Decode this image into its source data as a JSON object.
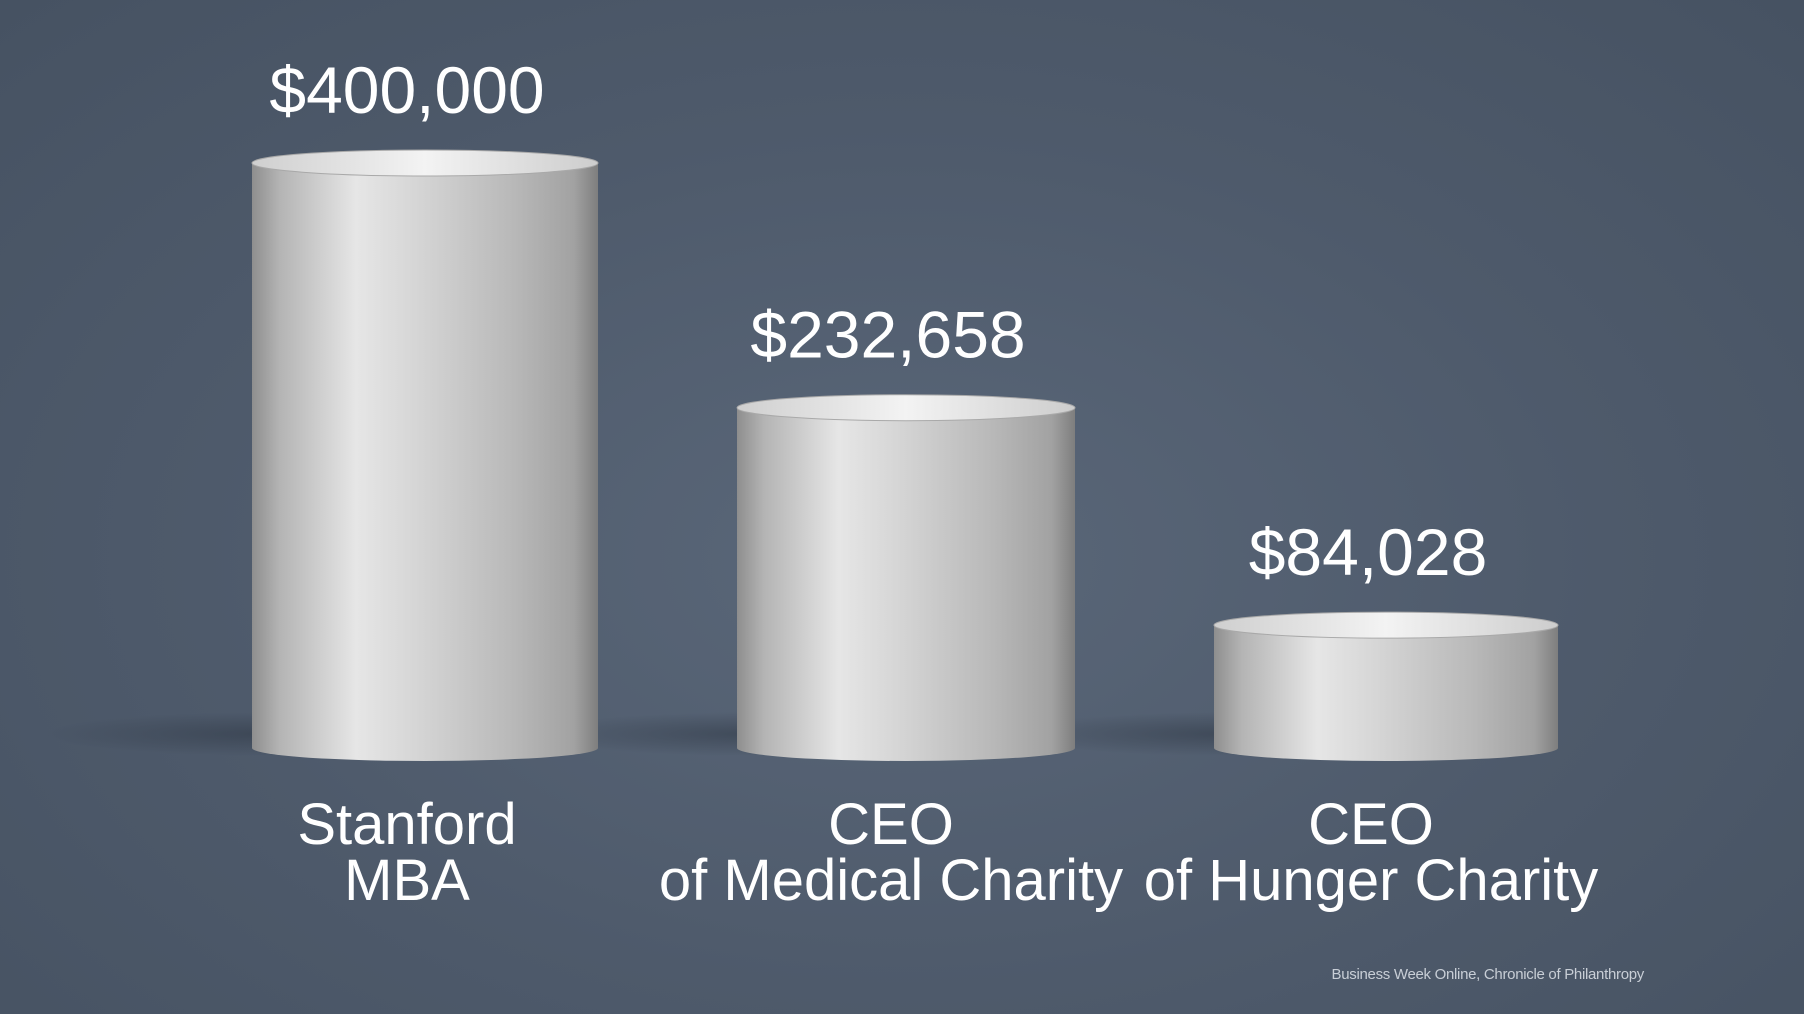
{
  "chart_data": {
    "type": "bar",
    "style": "3d-cylinder",
    "categories": [
      [
        "Stanford",
        "MBA"
      ],
      [
        "CEO",
        "of Medical Charity"
      ],
      [
        "CEO",
        "of Hunger Charity"
      ]
    ],
    "values": [
      400000,
      232658,
      84028
    ],
    "value_labels": [
      "$400,000",
      "$232,658",
      "$84,028"
    ],
    "ylim": [
      0,
      400000
    ],
    "grid": false,
    "legend": "none",
    "colors": {
      "background": "#4f5c6d",
      "bar": "#c9c9c9",
      "text": "#ffffff"
    }
  },
  "source": "Business Week Online,  Chronicle of Philanthropy"
}
